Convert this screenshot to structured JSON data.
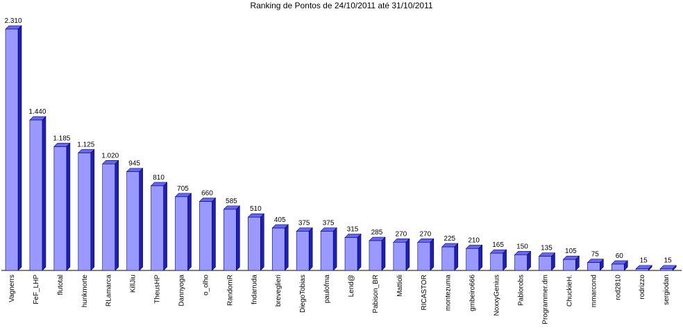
{
  "chart_data": {
    "type": "bar3d",
    "title": "Ranking de Pontos de 24/10/2011 até 31/10/2011",
    "categories": [
      "Vagnerrs",
      "FeF_LHP",
      "flutotal",
      "hunkmorte",
      "RLamarca",
      "KillJiu",
      "TheusHP",
      "Dannyoga",
      "o_olho",
      "RandomR",
      "fndarruda",
      "breveglieri",
      "DiegoTobias",
      "paulofma",
      "Lend@",
      "Pabison_BR",
      "Mattioli",
      "RICASTOR",
      "montezuma",
      "gmbeiro666",
      "NoxxyGenius",
      "Pablorobs",
      "Programmer.dm",
      "ChuckieH.",
      "mmarcond",
      "rod2810",
      "rodrizzo",
      "sergiodan"
    ],
    "values": [
      2310,
      1440,
      1185,
      1125,
      1020,
      945,
      810,
      705,
      660,
      585,
      510,
      405,
      375,
      375,
      315,
      285,
      270,
      270,
      225,
      210,
      165,
      150,
      135,
      105,
      75,
      60,
      15,
      15
    ],
    "value_labels": [
      "2.310",
      "1.440",
      "1.185",
      "1.125",
      "1.020",
      "945",
      "810",
      "705",
      "660",
      "585",
      "510",
      "405",
      "375",
      "375",
      "315",
      "285",
      "270",
      "270",
      "225",
      "210",
      "165",
      "150",
      "135",
      "105",
      "75",
      "60",
      "15",
      "15"
    ],
    "color": "#9999ff"
  }
}
